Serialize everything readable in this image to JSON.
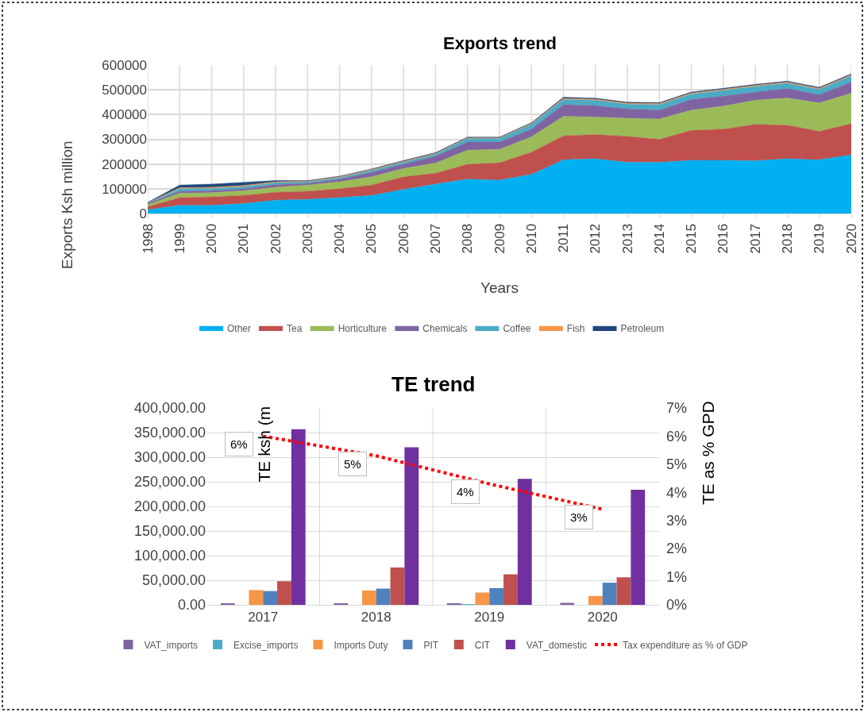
{
  "chart_data": [
    {
      "type": "area",
      "stacked": true,
      "title": "Exports trend",
      "xlabel": "Years",
      "ylabel": "Exports Ksh million",
      "categories": [
        "1998",
        "1999",
        "2000",
        "2001",
        "2002",
        "2003",
        "2004",
        "2005",
        "2006",
        "2007",
        "2008",
        "2009",
        "2010",
        "2011",
        "2012",
        "2013",
        "2014",
        "2015",
        "2016",
        "2017",
        "2018",
        "2019",
        "2020"
      ],
      "ylim": [
        0,
        600000
      ],
      "yticks": [
        0,
        100000,
        200000,
        300000,
        400000,
        500000,
        600000
      ],
      "grid": true,
      "legend": "bottom",
      "series": [
        {
          "name": "Other",
          "color": "#00b0f0",
          "values": [
            15000,
            33000,
            33000,
            40000,
            54000,
            57000,
            64000,
            73000,
            97000,
            119000,
            139000,
            135000,
            158000,
            217000,
            221000,
            207000,
            207000,
            215000,
            215000,
            213000,
            221000,
            217000,
            237000
          ]
        },
        {
          "name": "Tea",
          "color": "#c0504d",
          "values": [
            12000,
            31000,
            34000,
            33000,
            32000,
            33000,
            36000,
            42000,
            51000,
            44000,
            60000,
            70000,
            90000,
            97000,
            98000,
            105000,
            93000,
            121000,
            126000,
            147000,
            136000,
            115000,
            126000
          ]
        },
        {
          "name": "Horticulture",
          "color": "#9bbb59",
          "values": [
            8000,
            18000,
            17000,
            19000,
            20000,
            25000,
            28000,
            33000,
            34000,
            41000,
            57000,
            54000,
            62000,
            79000,
            71000,
            73000,
            82000,
            82000,
            93000,
            98000,
            110000,
            115000,
            123000
          ]
        },
        {
          "name": "Chemicals",
          "color": "#8064a2",
          "values": [
            5000,
            8000,
            8000,
            8000,
            11000,
            7000,
            11000,
            18000,
            18000,
            28000,
            33000,
            30000,
            31000,
            47000,
            46000,
            38000,
            36000,
            43000,
            41000,
            33000,
            38000,
            33000,
            46000
          ]
        },
        {
          "name": "Coffee",
          "color": "#4bacc6",
          "values": [
            2000,
            10000,
            10000,
            9000,
            8000,
            6000,
            6000,
            8000,
            8000,
            8000,
            14000,
            14000,
            20000,
            21000,
            22000,
            19000,
            22000,
            22000,
            23000,
            23000,
            22000,
            22000,
            25000
          ]
        },
        {
          "name": "Fish",
          "color": "#f79646",
          "values": [
            1000,
            4000,
            4000,
            4000,
            3000,
            3000,
            3000,
            3000,
            3000,
            3000,
            3000,
            3000,
            3000,
            4000,
            4000,
            4000,
            4000,
            4000,
            4000,
            4000,
            4000,
            4000,
            4000
          ]
        },
        {
          "name": "Petroleum",
          "color": "#1f497d",
          "values": [
            2000,
            11000,
            13000,
            13000,
            5000,
            2000,
            3000,
            3000,
            3000,
            3000,
            3000,
            3000,
            3000,
            5000,
            4000,
            4000,
            4000,
            4000,
            4000,
            4000,
            4000,
            4000,
            4000
          ]
        }
      ]
    },
    {
      "type": "bar",
      "title": "TE trend",
      "ylabel": "TE ksh (m",
      "y2label": "TE as % GPD",
      "categories": [
        "2017",
        "2018",
        "2019",
        "2020"
      ],
      "ylim": [
        0,
        400000
      ],
      "yticks": [
        {
          "value": 0,
          "label": "0.00"
        },
        {
          "value": 50000,
          "label": "50,000.00"
        },
        {
          "value": 100000,
          "label": "100,000.00"
        },
        {
          "value": 150000,
          "label": "150,000.00"
        },
        {
          "value": 200000,
          "label": "200,000.00"
        },
        {
          "value": 250000,
          "label": "250,000.00"
        },
        {
          "value": 300000,
          "label": "300,000.00"
        },
        {
          "value": 350000,
          "label": "350,000.00"
        },
        {
          "value": 400000,
          "label": "400,000.00"
        }
      ],
      "y2lim": [
        0,
        7
      ],
      "y2ticks": [
        {
          "value": 0,
          "label": "0%"
        },
        {
          "value": 1,
          "label": "1%"
        },
        {
          "value": 2,
          "label": "2%"
        },
        {
          "value": 3,
          "label": "3%"
        },
        {
          "value": 4,
          "label": "4%"
        },
        {
          "value": 5,
          "label": "5%"
        },
        {
          "value": 6,
          "label": "6%"
        },
        {
          "value": 7,
          "label": "7%"
        }
      ],
      "grid": true,
      "legend": "bottom",
      "series": [
        {
          "name": "VAT_imports",
          "color": "#8064a2",
          "values": [
            2000,
            2000,
            2000,
            4000
          ]
        },
        {
          "name": "Excise_imports",
          "color": "#4bacc6",
          "values": [
            0,
            0,
            1000,
            0
          ]
        },
        {
          "name": "Imports Duty",
          "color": "#f79646",
          "values": [
            30000,
            29000,
            25000,
            18000
          ]
        },
        {
          "name": "PIT",
          "color": "#4f81bd",
          "values": [
            28000,
            33000,
            34000,
            45000
          ]
        },
        {
          "name": "CIT",
          "color": "#c0504d",
          "values": [
            48000,
            76000,
            62000,
            56000
          ]
        },
        {
          "name": "VAT_domestic",
          "color": "#7030a0",
          "values": [
            357000,
            320000,
            256000,
            234000
          ]
        },
        {
          "name": "Tax expenditure as % of GDP",
          "type": "line",
          "axis": "y2",
          "color": "#ff0000",
          "line_style": "dotted",
          "marker": "none",
          "values": [
            6.0,
            5.3,
            4.3,
            3.4
          ],
          "value_labels": [
            "6%",
            "5%",
            "4%",
            "3%"
          ]
        }
      ]
    }
  ]
}
